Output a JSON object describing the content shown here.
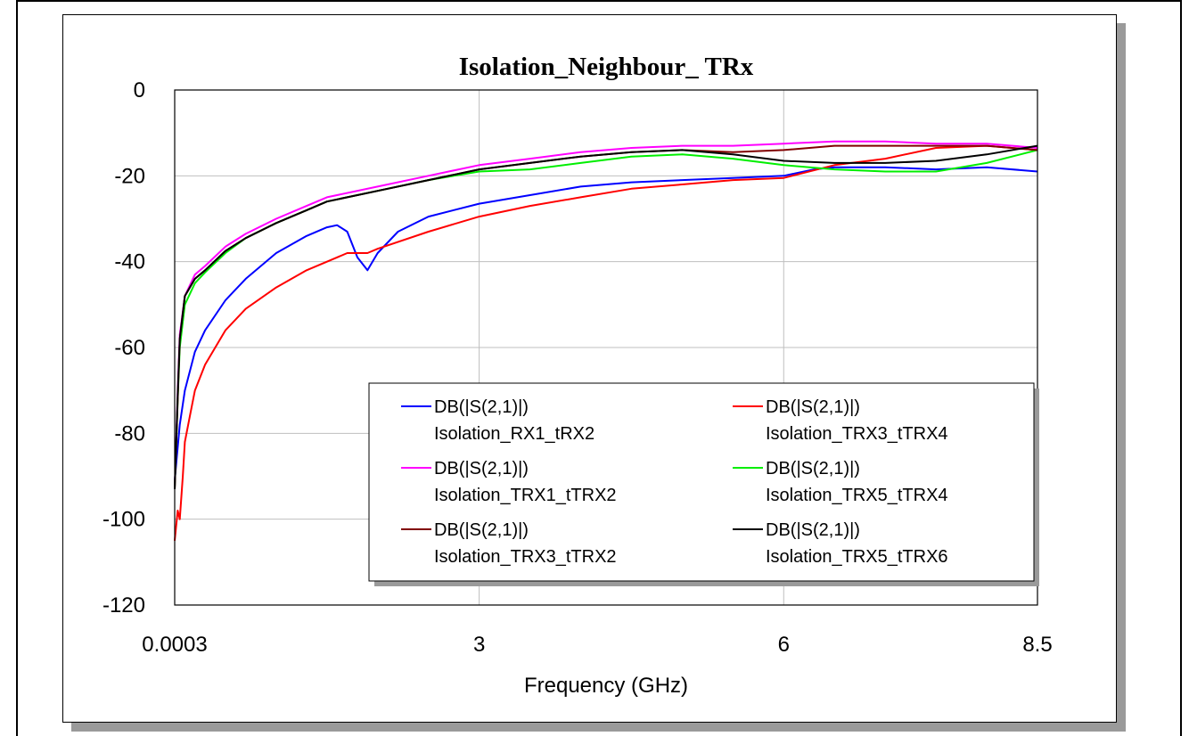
{
  "chart_data": {
    "type": "line",
    "title": "Isolation_Neighbour_ TRx",
    "xlabel": "Frequency (GHz)",
    "ylabel": "",
    "xlim": [
      0.0003,
      8.5
    ],
    "ylim": [
      -120,
      0
    ],
    "x_ticks": [
      0.0003,
      3,
      6,
      8.5
    ],
    "x_tick_labels": [
      "0.0003",
      "3",
      "6",
      "8.5"
    ],
    "y_ticks": [
      0,
      -20,
      -40,
      -60,
      -80,
      -100,
      -120
    ],
    "y_tick_labels": [
      "0",
      "-20",
      "-40",
      "-60",
      "-80",
      "-100",
      "-120"
    ],
    "grid": true,
    "legend_position": "bottom-right",
    "series": [
      {
        "name": "DB(|S(2,1)|)",
        "name_line2": "Isolation_RX1_tRX2",
        "color": "#0000ff",
        "x": [
          0.0003,
          0.05,
          0.1,
          0.2,
          0.3,
          0.5,
          0.7,
          1.0,
          1.3,
          1.5,
          1.6,
          1.7,
          1.8,
          1.9,
          2.0,
          2.2,
          2.5,
          3.0,
          3.5,
          4.0,
          4.5,
          5.0,
          5.5,
          6.0,
          6.3,
          6.5,
          7.0,
          7.5,
          8.0,
          8.5
        ],
        "y": [
          -91,
          -78,
          -70,
          -61,
          -56,
          -49,
          -44,
          -38,
          -34,
          -32,
          -31.5,
          -33,
          -39,
          -42,
          -38,
          -33,
          -29.5,
          -26.5,
          -24.5,
          -22.5,
          -21.5,
          -21,
          -20.5,
          -20,
          -18.5,
          -18,
          -18,
          -18.5,
          -18,
          -19
        ]
      },
      {
        "name": "DB(|S(2,1)|)",
        "name_line2": "Isolation_TRX3_tTRX4",
        "color": "#ff0000",
        "x": [
          0.0003,
          0.03,
          0.05,
          0.08,
          0.1,
          0.15,
          0.2,
          0.3,
          0.5,
          0.7,
          1.0,
          1.3,
          1.5,
          1.7,
          1.8,
          1.9,
          2.0,
          2.5,
          3.0,
          3.5,
          4.0,
          4.5,
          5.0,
          5.5,
          6.0,
          6.5,
          7.0,
          7.5,
          8.0,
          8.5
        ],
        "y": [
          -105,
          -98,
          -100,
          -90,
          -82,
          -76,
          -70,
          -64,
          -56,
          -51,
          -46,
          -42,
          -40,
          -38,
          -38,
          -38,
          -37,
          -33,
          -29.5,
          -27,
          -25,
          -23,
          -22,
          -21,
          -20.5,
          -17.5,
          -16,
          -13.5,
          -13,
          -14
        ]
      },
      {
        "name": "DB(|S(2,1)|)",
        "name_line2": "Isolation_TRX1_tTRX2",
        "color": "#ff00ff",
        "x": [
          0.0003,
          0.03,
          0.05,
          0.1,
          0.2,
          0.3,
          0.5,
          0.7,
          1.0,
          1.3,
          1.5,
          2.0,
          2.5,
          3.0,
          3.5,
          4.0,
          4.5,
          5.0,
          5.5,
          6.0,
          6.5,
          7.0,
          7.5,
          8.0,
          8.5
        ],
        "y": [
          -93,
          -70,
          -57,
          -48,
          -43,
          -41,
          -36.5,
          -33.5,
          -30,
          -27,
          -25,
          -22.5,
          -20,
          -17.5,
          -16,
          -14.5,
          -13.5,
          -13,
          -13,
          -12.5,
          -12,
          -12,
          -12.5,
          -12.5,
          -13.5
        ]
      },
      {
        "name": "DB(|S(2,1)|)",
        "name_line2": "Isolation_TRX5_tTRX4",
        "color": "#00ee00",
        "x": [
          0.0003,
          0.03,
          0.05,
          0.1,
          0.2,
          0.3,
          0.5,
          0.7,
          1.0,
          1.3,
          1.5,
          2.0,
          2.5,
          3.0,
          3.5,
          4.0,
          4.5,
          5.0,
          5.5,
          6.0,
          6.5,
          7.0,
          7.5,
          8.0,
          8.5
        ],
        "y": [
          -93,
          -72,
          -60,
          -50,
          -45,
          -42.5,
          -38,
          -34.5,
          -31,
          -28,
          -26,
          -23.5,
          -21,
          -19,
          -18.5,
          -17,
          -15.5,
          -15,
          -16,
          -17.5,
          -18.5,
          -19,
          -19,
          -17,
          -14
        ]
      },
      {
        "name": "DB(|S(2,1)|)",
        "name_line2": "Isolation_TRX3_tTRX2",
        "color": "#800000",
        "x": [
          0.0003,
          0.03,
          0.05,
          0.1,
          0.2,
          0.3,
          0.5,
          0.7,
          1.0,
          1.3,
          1.5,
          2.0,
          2.5,
          3.0,
          3.5,
          4.0,
          4.5,
          5.0,
          5.5,
          6.0,
          6.5,
          7.0,
          7.5,
          8.0,
          8.5
        ],
        "y": [
          -93,
          -72,
          -58,
          -48,
          -44,
          -42,
          -37.5,
          -34.5,
          -31,
          -28,
          -26,
          -23.5,
          -21,
          -18.5,
          -17,
          -15.5,
          -14.5,
          -14,
          -14.5,
          -14,
          -13,
          -13,
          -13,
          -13,
          -14
        ]
      },
      {
        "name": "DB(|S(2,1)|)",
        "name_line2": "Isolation_TRX5_tTRX6",
        "color": "#000000",
        "x": [
          0.0003,
          0.03,
          0.05,
          0.1,
          0.2,
          0.3,
          0.5,
          0.7,
          1.0,
          1.3,
          1.5,
          2.0,
          2.5,
          3.0,
          3.5,
          4.0,
          4.5,
          5.0,
          5.5,
          6.0,
          6.5,
          7.0,
          7.5,
          8.0,
          8.5
        ],
        "y": [
          -93,
          -71,
          -58,
          -48,
          -44,
          -42,
          -37.5,
          -34.5,
          -31,
          -28,
          -26,
          -23.5,
          -21,
          -18.5,
          -17,
          -15.5,
          -14.5,
          -14,
          -15,
          -16.5,
          -17,
          -17,
          -16.5,
          -15,
          -13
        ]
      }
    ]
  }
}
